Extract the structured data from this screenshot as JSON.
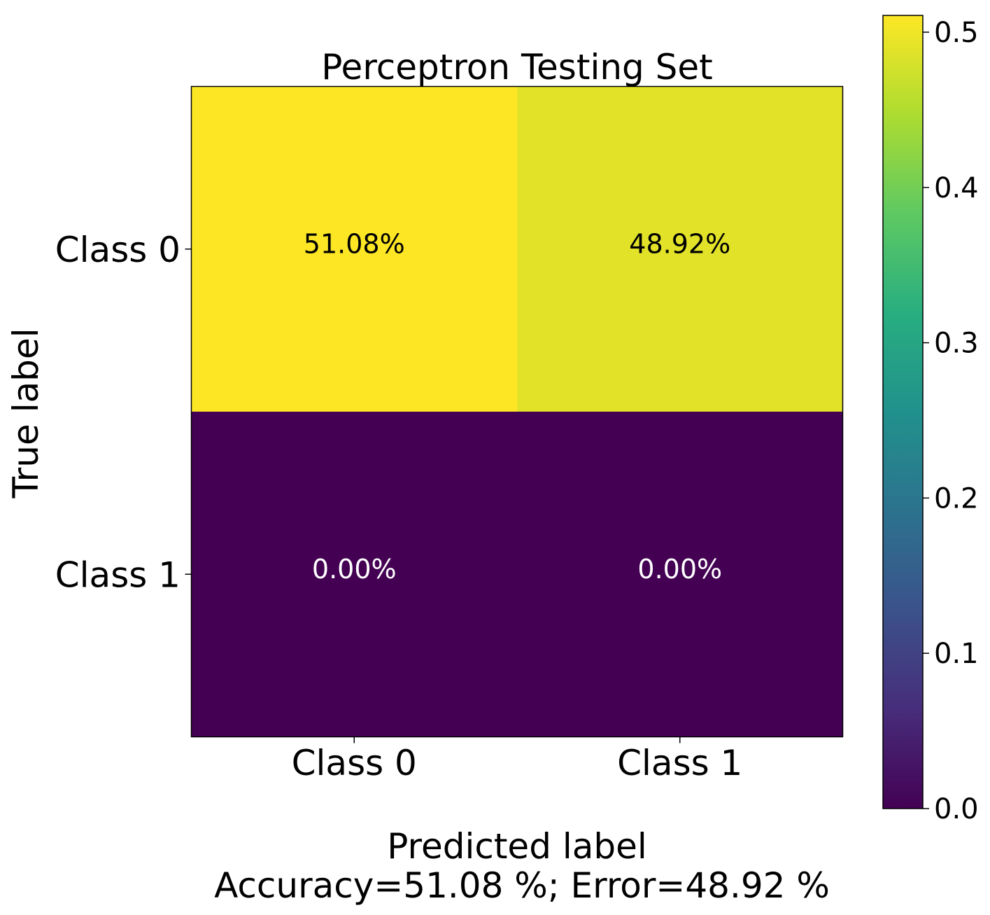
{
  "chart_data": {
    "type": "heatmap",
    "title": "Perceptron Testing Set",
    "xlabel": "Predicted label",
    "xlabel_sub": "Accuracy=51.08 %; Error=48.92 %",
    "ylabel": "True label",
    "x_categories": [
      "Class 0",
      "Class 1"
    ],
    "y_categories": [
      "Class 0",
      "Class 1"
    ],
    "values": [
      [
        0.5108,
        0.4892
      ],
      [
        0.0,
        0.0
      ]
    ],
    "cell_labels": [
      [
        "51.08%",
        "48.92%"
      ],
      [
        "0.00%",
        "0.00%"
      ]
    ],
    "colorbar": {
      "range": [
        0,
        0.5108
      ],
      "ticks": [
        0.0,
        0.1,
        0.2,
        0.3,
        0.4,
        0.5
      ],
      "tick_labels": [
        "0.0",
        "0.1",
        "0.2",
        "0.3",
        "0.4",
        "0.5"
      ],
      "colormap": "viridis"
    },
    "grid": false
  }
}
